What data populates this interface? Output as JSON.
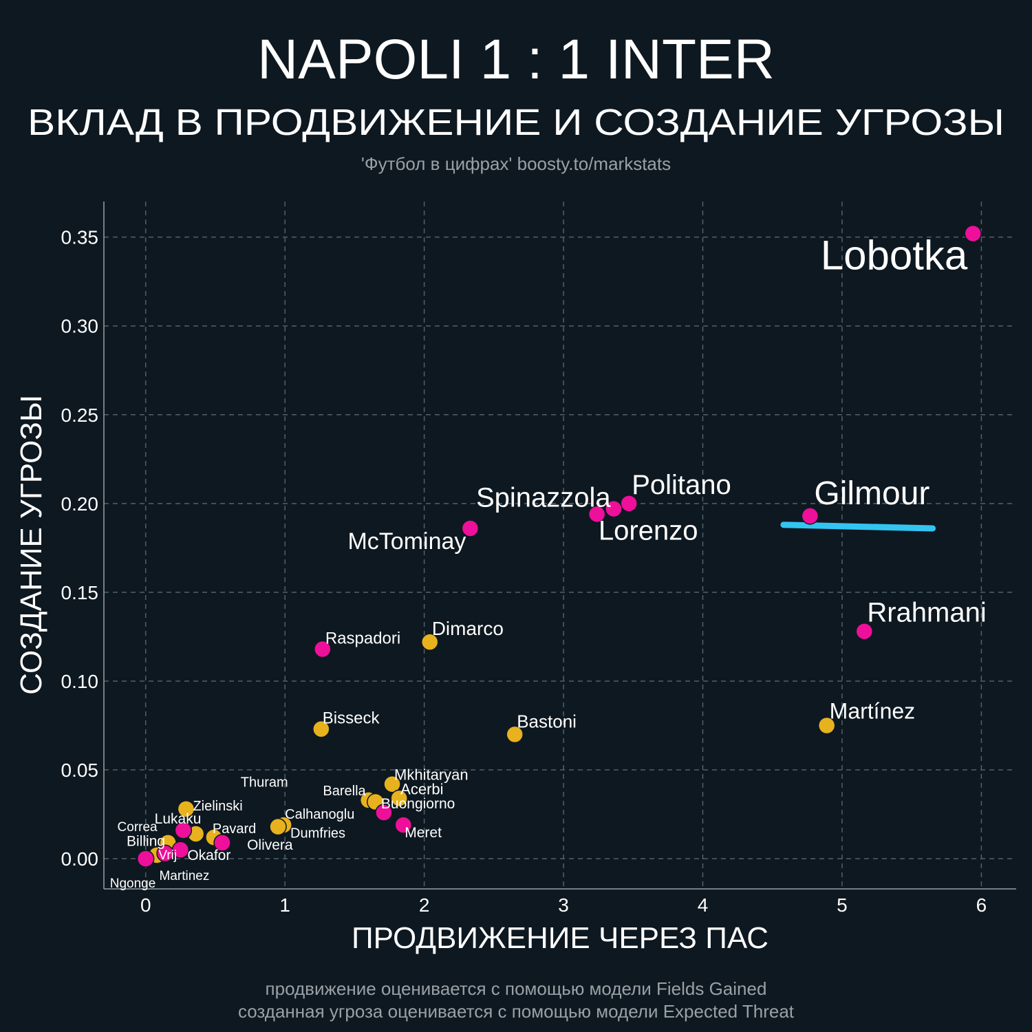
{
  "header": {
    "title": "NAPOLI 1 : 1 INTER",
    "subtitle": "ВКЛАД В ПРОДВИЖЕНИЕ И СОЗДАНИЕ УГРОЗЫ",
    "credit": "'Футбол в цифрах' boosty.to/markstats"
  },
  "footer": {
    "note_1": "продвижение оценивается с помощью модели Fields Gained",
    "note_2": "созданная угроза оценивается с помощью модели Expected Threat"
  },
  "colors": {
    "background": "#0e1820",
    "napoli": "#ee0f9a",
    "inter": "#e8b21e",
    "highlight": "#33c4f2",
    "grid": "#52616b",
    "text": "#ffffff",
    "muted": "#9aa1a6"
  },
  "chart_data": {
    "type": "scatter",
    "xlabel": "ПРОДВИЖЕНИЕ ЧЕРЕЗ ПАС",
    "ylabel": "СОЗДАНИЕ УГРОЗЫ",
    "xlim": [
      -0.3,
      6.25
    ],
    "ylim": [
      -0.017,
      0.37
    ],
    "xticks": [
      0,
      1,
      2,
      3,
      4,
      5,
      6
    ],
    "xtick_labels": [
      "0",
      "1",
      "2",
      "3",
      "4",
      "5",
      "6"
    ],
    "yticks": [
      0,
      0.05,
      0.1,
      0.15,
      0.2,
      0.25,
      0.3,
      0.35
    ],
    "ytick_labels": [
      "0.00",
      "0.05",
      "0.10",
      "0.15",
      "0.20",
      "0.25",
      "0.30",
      "0.35"
    ],
    "grid": true,
    "highlight_line": {
      "x": [
        4.58,
        5.65
      ],
      "y": [
        0.188,
        0.186
      ]
    },
    "series": [
      {
        "team": "napoli",
        "points": [
          {
            "name": "Lobotka",
            "x": 5.94,
            "y": 0.352
          },
          {
            "name": "Gilmour",
            "x": 4.77,
            "y": 0.193
          },
          {
            "name": "Rrahmani",
            "x": 5.16,
            "y": 0.128
          },
          {
            "name": "Politano",
            "x": 3.47,
            "y": 0.2
          },
          {
            "name": "Lorenzo",
            "x": 3.36,
            "y": 0.197
          },
          {
            "name": "Spinazzola",
            "x": 3.24,
            "y": 0.194
          },
          {
            "name": "McTominay",
            "x": 2.33,
            "y": 0.186
          },
          {
            "name": "Raspadori",
            "x": 1.27,
            "y": 0.118
          },
          {
            "name": "Buongiorno",
            "x": 1.71,
            "y": 0.026
          },
          {
            "name": "Meret",
            "x": 1.85,
            "y": 0.019
          },
          {
            "name": "Lukaku",
            "x": 0.27,
            "y": 0.016
          },
          {
            "name": "Olivera",
            "x": 0.55,
            "y": 0.009
          },
          {
            "name": "Okafor",
            "x": 0.25,
            "y": 0.005
          },
          {
            "name": "Billing",
            "x": 0.14,
            "y": 0.003
          },
          {
            "name": "Ngonge",
            "x": 0.0,
            "y": 0.0
          }
        ]
      },
      {
        "team": "inter",
        "points": [
          {
            "name": "Martínez",
            "x": 4.89,
            "y": 0.075
          },
          {
            "name": "Dimarco",
            "x": 2.04,
            "y": 0.122
          },
          {
            "name": "Bastoni",
            "x": 2.65,
            "y": 0.07
          },
          {
            "name": "Bisseck",
            "x": 1.26,
            "y": 0.073
          },
          {
            "name": "Mkhitaryan",
            "x": 1.77,
            "y": 0.042
          },
          {
            "name": "Acerbi",
            "x": 1.82,
            "y": 0.034
          },
          {
            "name": "Barella",
            "x": 1.6,
            "y": 0.033
          },
          {
            "name": "Thuram",
            "x": 1.65,
            "y": 0.032
          },
          {
            "name": "Calhanoglu",
            "x": 0.99,
            "y": 0.019
          },
          {
            "name": "Dumfries",
            "x": 0.95,
            "y": 0.018
          },
          {
            "name": "Zielinski",
            "x": 0.29,
            "y": 0.028
          },
          {
            "name": "Pavard",
            "x": 0.49,
            "y": 0.012
          },
          {
            "name": "Correa",
            "x": 0.36,
            "y": 0.014
          },
          {
            "name": "Vrij",
            "x": 0.16,
            "y": 0.009
          },
          {
            "name": "Martinez",
            "x": 0.08,
            "y": 0.002
          }
        ]
      }
    ]
  }
}
